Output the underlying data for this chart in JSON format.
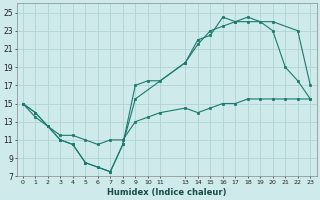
{
  "xlabel": "Humidex (Indice chaleur)",
  "bg_color": "#ceeaea",
  "grid_color": "#aed4d4",
  "line_color": "#1a7a6e",
  "line1_x": [
    0,
    1,
    2,
    3,
    4,
    5,
    6,
    7,
    8,
    9,
    13,
    14,
    15,
    16,
    17,
    18,
    20,
    22,
    23
  ],
  "line1_y": [
    15,
    14,
    12.5,
    11,
    10.5,
    8.5,
    8,
    7.5,
    10.5,
    15.5,
    19.5,
    21.5,
    23,
    23.5,
    24,
    24,
    24,
    23,
    17
  ],
  "line2_x": [
    0,
    1,
    2,
    3,
    4,
    5,
    6,
    7,
    8,
    9,
    10,
    11,
    13,
    14,
    15,
    16,
    17,
    18,
    19,
    20,
    21,
    22,
    23
  ],
  "line2_y": [
    15,
    14,
    12.5,
    11,
    10.5,
    8.5,
    8,
    7.5,
    10.5,
    17,
    17.5,
    17.5,
    19.5,
    22,
    22.5,
    24.5,
    24,
    24.5,
    24,
    23,
    19,
    17.5,
    15.5
  ],
  "line3_x": [
    0,
    1,
    2,
    3,
    4,
    5,
    6,
    7,
    8,
    9,
    10,
    11,
    13,
    14,
    15,
    16,
    17,
    18,
    19,
    20,
    21,
    22,
    23
  ],
  "line3_y": [
    15,
    13.5,
    12.5,
    11.5,
    11.5,
    11,
    10.5,
    11,
    11,
    13,
    13.5,
    14,
    14.5,
    14,
    14.5,
    15,
    15,
    15.5,
    15.5,
    15.5,
    15.5,
    15.5,
    15.5
  ],
  "ylim": [
    7,
    26
  ],
  "xlim": [
    -0.5,
    23.5
  ],
  "yticks": [
    7,
    9,
    11,
    13,
    15,
    17,
    19,
    21,
    23,
    25
  ],
  "xticks": [
    0,
    1,
    2,
    3,
    4,
    5,
    6,
    7,
    8,
    9,
    10,
    11,
    13,
    14,
    15,
    16,
    17,
    18,
    19,
    20,
    21,
    22,
    23
  ]
}
